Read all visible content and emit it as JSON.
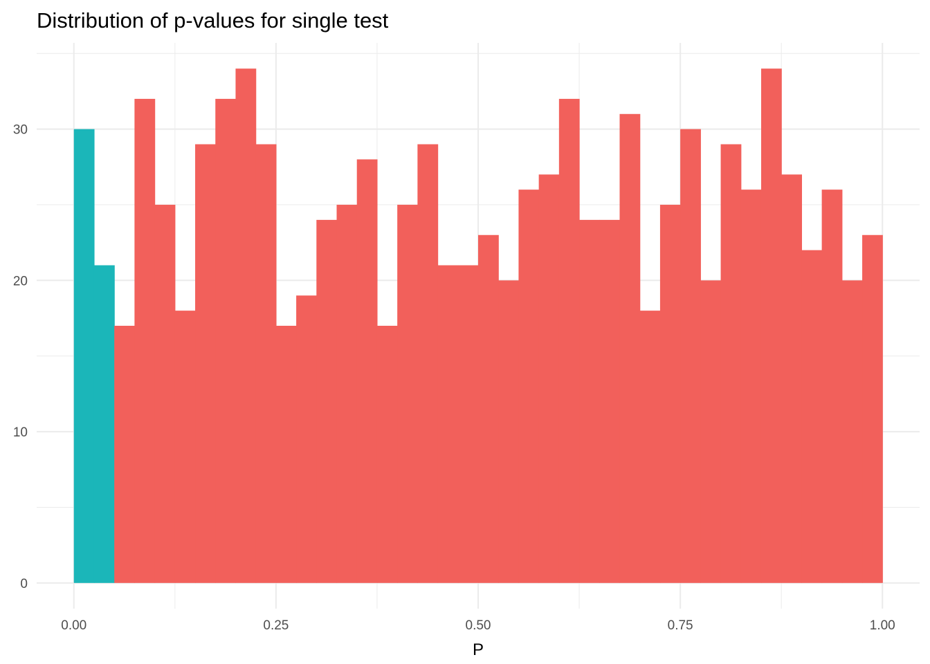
{
  "chart_data": {
    "type": "bar",
    "title": "Distribution of p-values for single test",
    "xlabel": "P",
    "ylabel": "",
    "xlim": [
      -0.046,
      1.046
    ],
    "ylim": [
      -1.7,
      35.7
    ],
    "x_ticks": [
      {
        "value": 0,
        "label": "0.00"
      },
      {
        "value": 0.25,
        "label": "0.25"
      },
      {
        "value": 0.5,
        "label": "0.50"
      },
      {
        "value": 0.75,
        "label": "0.75"
      },
      {
        "value": 1,
        "label": "1.00"
      }
    ],
    "x_minor_ticks": [
      0.125,
      0.375,
      0.625,
      0.875
    ],
    "y_ticks": [
      {
        "value": 0,
        "label": "0"
      },
      {
        "value": 10,
        "label": "10"
      },
      {
        "value": 20,
        "label": "20"
      },
      {
        "value": 30,
        "label": "30"
      }
    ],
    "y_minor_ticks": [
      5,
      15,
      25,
      35
    ],
    "grid": true,
    "legend": "none",
    "colors": {
      "significant": "#1bb6b9",
      "not_significant": "#f2605b",
      "grid": "#ebebeb"
    },
    "bin_width": 0.025,
    "bins": [
      {
        "x_start": 0.0,
        "x_end": 0.025,
        "count": 30,
        "group": "significant"
      },
      {
        "x_start": 0.025,
        "x_end": 0.05,
        "count": 21,
        "group": "significant"
      },
      {
        "x_start": 0.05,
        "x_end": 0.075,
        "count": 17,
        "group": "not_significant"
      },
      {
        "x_start": 0.075,
        "x_end": 0.1,
        "count": 32,
        "group": "not_significant"
      },
      {
        "x_start": 0.1,
        "x_end": 0.125,
        "count": 25,
        "group": "not_significant"
      },
      {
        "x_start": 0.125,
        "x_end": 0.15,
        "count": 18,
        "group": "not_significant"
      },
      {
        "x_start": 0.15,
        "x_end": 0.175,
        "count": 29,
        "group": "not_significant"
      },
      {
        "x_start": 0.175,
        "x_end": 0.2,
        "count": 32,
        "group": "not_significant"
      },
      {
        "x_start": 0.2,
        "x_end": 0.225,
        "count": 34,
        "group": "not_significant"
      },
      {
        "x_start": 0.225,
        "x_end": 0.25,
        "count": 29,
        "group": "not_significant"
      },
      {
        "x_start": 0.25,
        "x_end": 0.275,
        "count": 17,
        "group": "not_significant"
      },
      {
        "x_start": 0.275,
        "x_end": 0.3,
        "count": 19,
        "group": "not_significant"
      },
      {
        "x_start": 0.3,
        "x_end": 0.325,
        "count": 24,
        "group": "not_significant"
      },
      {
        "x_start": 0.325,
        "x_end": 0.35,
        "count": 25,
        "group": "not_significant"
      },
      {
        "x_start": 0.35,
        "x_end": 0.375,
        "count": 28,
        "group": "not_significant"
      },
      {
        "x_start": 0.375,
        "x_end": 0.4,
        "count": 17,
        "group": "not_significant"
      },
      {
        "x_start": 0.4,
        "x_end": 0.425,
        "count": 25,
        "group": "not_significant"
      },
      {
        "x_start": 0.425,
        "x_end": 0.45,
        "count": 29,
        "group": "not_significant"
      },
      {
        "x_start": 0.45,
        "x_end": 0.475,
        "count": 21,
        "group": "not_significant"
      },
      {
        "x_start": 0.475,
        "x_end": 0.5,
        "count": 21,
        "group": "not_significant"
      },
      {
        "x_start": 0.5,
        "x_end": 0.525,
        "count": 23,
        "group": "not_significant"
      },
      {
        "x_start": 0.525,
        "x_end": 0.55,
        "count": 20,
        "group": "not_significant"
      },
      {
        "x_start": 0.55,
        "x_end": 0.575,
        "count": 26,
        "group": "not_significant"
      },
      {
        "x_start": 0.575,
        "x_end": 0.6,
        "count": 27,
        "group": "not_significant"
      },
      {
        "x_start": 0.6,
        "x_end": 0.625,
        "count": 32,
        "group": "not_significant"
      },
      {
        "x_start": 0.625,
        "x_end": 0.65,
        "count": 24,
        "group": "not_significant"
      },
      {
        "x_start": 0.65,
        "x_end": 0.675,
        "count": 24,
        "group": "not_significant"
      },
      {
        "x_start": 0.675,
        "x_end": 0.7,
        "count": 31,
        "group": "not_significant"
      },
      {
        "x_start": 0.7,
        "x_end": 0.725,
        "count": 18,
        "group": "not_significant"
      },
      {
        "x_start": 0.725,
        "x_end": 0.75,
        "count": 25,
        "group": "not_significant"
      },
      {
        "x_start": 0.75,
        "x_end": 0.775,
        "count": 30,
        "group": "not_significant"
      },
      {
        "x_start": 0.775,
        "x_end": 0.8,
        "count": 20,
        "group": "not_significant"
      },
      {
        "x_start": 0.8,
        "x_end": 0.825,
        "count": 29,
        "group": "not_significant"
      },
      {
        "x_start": 0.825,
        "x_end": 0.85,
        "count": 26,
        "group": "not_significant"
      },
      {
        "x_start": 0.85,
        "x_end": 0.875,
        "count": 34,
        "group": "not_significant"
      },
      {
        "x_start": 0.875,
        "x_end": 0.9,
        "count": 27,
        "group": "not_significant"
      },
      {
        "x_start": 0.9,
        "x_end": 0.925,
        "count": 22,
        "group": "not_significant"
      },
      {
        "x_start": 0.925,
        "x_end": 0.95,
        "count": 26,
        "group": "not_significant"
      },
      {
        "x_start": 0.95,
        "x_end": 0.975,
        "count": 20,
        "group": "not_significant"
      },
      {
        "x_start": 0.975,
        "x_end": 1.0,
        "count": 23,
        "group": "not_significant"
      }
    ]
  }
}
